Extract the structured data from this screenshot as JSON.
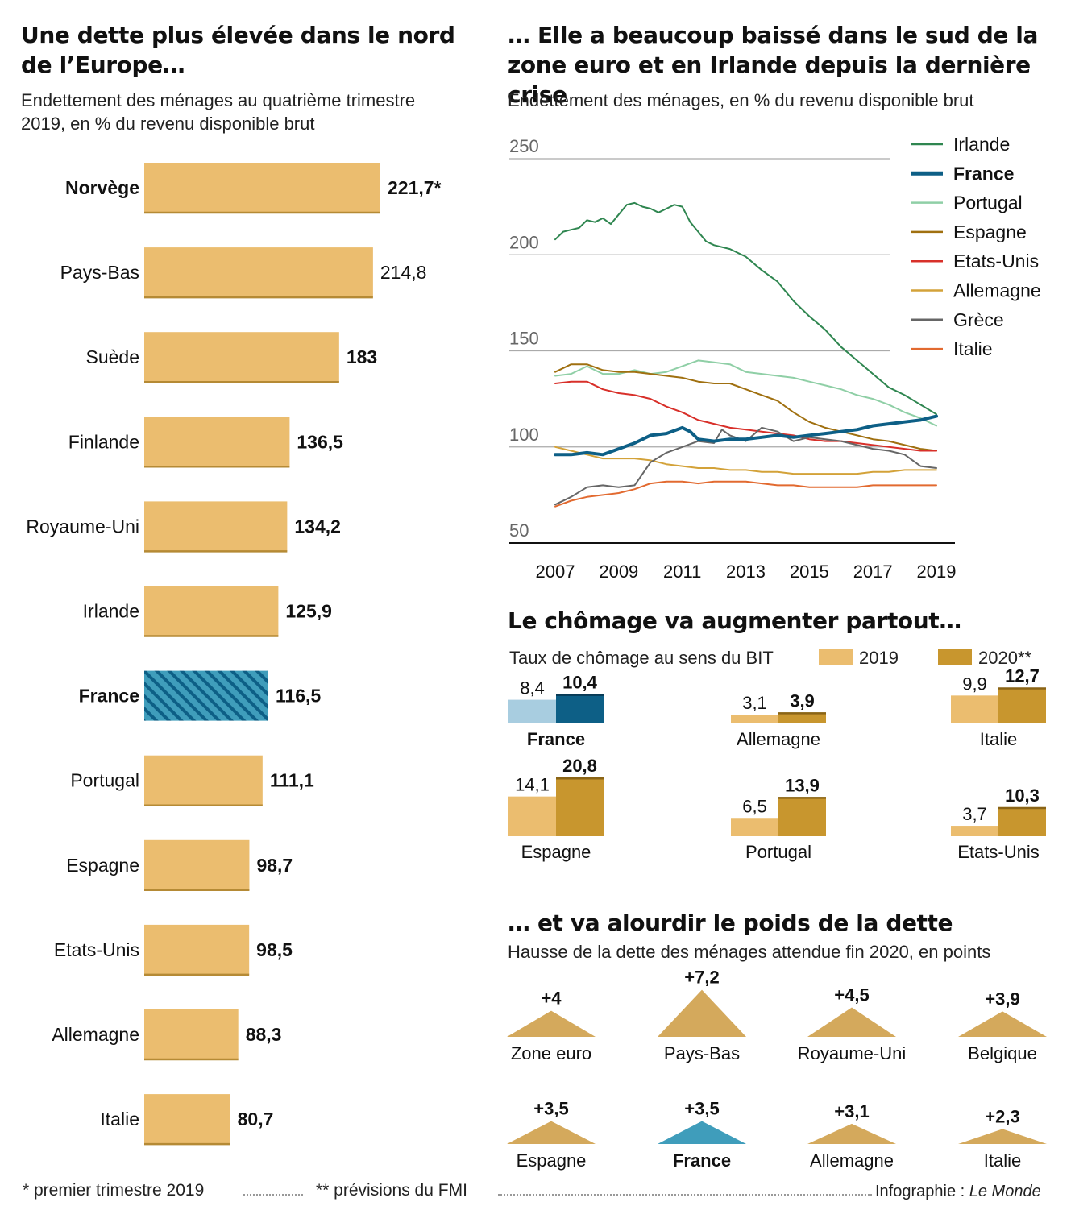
{
  "left": {
    "title": "Une dette plus élevée dans le nord de l’Europe…",
    "subtitle": "Endettement des ménages au quatrième trimestre 2019, en % du revenu disponible brut"
  },
  "line": {
    "title": "… Elle a beaucoup baissé dans le sud de la zone euro et en Irlande depuis la dernière crise",
    "subtitle": "Endettement des ménages, en % du revenu disponible brut"
  },
  "unemp": {
    "title": "Le chômage va augmenter partout…",
    "subtitle": "Taux de chômage au sens du BIT",
    "legend_2019": "2019",
    "legend_2020": "2020**"
  },
  "debt": {
    "title": "… et va alourdir le poids de la dette",
    "subtitle": "Hausse de la dette des ménages attendue fin 2020, en points"
  },
  "footer": {
    "note1": "* premier trimestre 2019",
    "note2": "** prévisions du FMI",
    "credit_prefix": "Infographie : ",
    "credit_source": "Le Monde"
  },
  "colors": {
    "bar": "#ebbd6f",
    "bar_dark": "#c8962e",
    "bar_edge": "#b58a35",
    "france_blue": "#0d5f86",
    "france_light": "#a8cde0",
    "triangle": "#d4a95c",
    "triangle_france": "#3f9dbb"
  },
  "chart_data": [
    {
      "type": "bar",
      "orientation": "horizontal",
      "categories": [
        "Norvège",
        "Pays-Bas",
        "Suède",
        "Finlande",
        "Royaume-Uni",
        "Irlande",
        "France",
        "Portugal",
        "Espagne",
        "Etats-Unis",
        "Allemagne",
        "Italie"
      ],
      "values": [
        221.7,
        214.8,
        183,
        136.5,
        134.2,
        125.9,
        116.5,
        111.1,
        98.7,
        98.5,
        88.3,
        80.7
      ],
      "value_labels": [
        "221,7*",
        "214,8",
        "183",
        "136,5",
        "134,2",
        "125,9",
        "116,5",
        "111,1",
        "98,7",
        "98,5",
        "88,3",
        "80,7"
      ],
      "bold_labels": [
        true,
        false,
        false,
        false,
        false,
        false,
        true,
        false,
        false,
        false,
        false,
        false
      ],
      "highlight": "France"
    },
    {
      "type": "line",
      "x_ticks": [
        "2007",
        "2009",
        "2011",
        "2013",
        "2015",
        "2017",
        "2019"
      ],
      "y_ticks": [
        "50",
        "100",
        "150",
        "200",
        "250"
      ],
      "ylim": [
        50,
        250
      ],
      "xlim": [
        2007,
        2019
      ],
      "grid": true,
      "legend_position": "right",
      "series": [
        {
          "name": "Irlande",
          "color": "#2f8650",
          "width": 2,
          "bold": false,
          "x": [
            2007,
            2007.25,
            2007.5,
            2007.75,
            2008,
            2008.25,
            2008.5,
            2008.75,
            2009,
            2009.25,
            2009.5,
            2009.75,
            2010,
            2010.25,
            2010.5,
            2010.75,
            2011,
            2011.25,
            2011.5,
            2011.75,
            2012,
            2012.5,
            2013,
            2013.5,
            2014,
            2014.5,
            2015,
            2015.5,
            2016,
            2016.5,
            2017,
            2017.5,
            2018,
            2018.5,
            2019
          ],
          "y": [
            208,
            212,
            213,
            214,
            218,
            217,
            219,
            216,
            221,
            226,
            227,
            225,
            224,
            222,
            224,
            226,
            225,
            217,
            212,
            207,
            205,
            203,
            199,
            192,
            186,
            176,
            168,
            161,
            152,
            145,
            138,
            131,
            127,
            122,
            117
          ]
        },
        {
          "name": "France",
          "color": "#0d5f86",
          "width": 4,
          "bold": true,
          "x": [
            2007,
            2007.5,
            2008,
            2008.5,
            2009,
            2009.5,
            2010,
            2010.5,
            2011,
            2011.25,
            2011.5,
            2012,
            2012.5,
            2013,
            2013.5,
            2014,
            2014.5,
            2015,
            2015.5,
            2016,
            2016.5,
            2017,
            2017.5,
            2018,
            2018.5,
            2019
          ],
          "y": [
            96,
            96,
            97,
            96,
            99,
            102,
            106,
            107,
            110,
            108,
            104,
            103,
            104,
            104,
            105,
            106,
            105,
            106,
            107,
            108,
            109,
            111,
            112,
            113,
            114,
            116
          ]
        },
        {
          "name": "Portugal",
          "color": "#8fcfa6",
          "width": 2,
          "bold": false,
          "x": [
            2007,
            2007.5,
            2008,
            2008.5,
            2009,
            2009.5,
            2010,
            2010.5,
            2011,
            2011.5,
            2012,
            2012.5,
            2013,
            2013.5,
            2014,
            2014.5,
            2015,
            2015.5,
            2016,
            2016.5,
            2017,
            2017.5,
            2018,
            2018.5,
            2019
          ],
          "y": [
            137,
            138,
            142,
            138,
            138,
            140,
            138,
            139,
            142,
            145,
            144,
            143,
            139,
            138,
            137,
            136,
            134,
            132,
            130,
            127,
            125,
            122,
            118,
            115,
            111
          ]
        },
        {
          "name": "Espagne",
          "color": "#a07010",
          "width": 2,
          "bold": false,
          "x": [
            2007,
            2007.5,
            2008,
            2008.5,
            2009,
            2009.5,
            2010,
            2010.5,
            2011,
            2011.5,
            2012,
            2012.5,
            2013,
            2013.5,
            2014,
            2014.5,
            2015,
            2015.5,
            2016,
            2016.5,
            2017,
            2017.5,
            2018,
            2018.5,
            2019
          ],
          "y": [
            139,
            143,
            143,
            140,
            139,
            139,
            138,
            137,
            136,
            134,
            133,
            133,
            130,
            127,
            124,
            118,
            113,
            110,
            108,
            106,
            104,
            103,
            101,
            99,
            98
          ]
        },
        {
          "name": "Etats-Unis",
          "color": "#d8302a",
          "width": 2,
          "bold": false,
          "x": [
            2007,
            2007.5,
            2008,
            2008.5,
            2009,
            2009.5,
            2010,
            2010.5,
            2011,
            2011.5,
            2012,
            2012.5,
            2013,
            2013.5,
            2014,
            2014.5,
            2015,
            2015.5,
            2016,
            2016.5,
            2017,
            2017.5,
            2018,
            2018.5,
            2019
          ],
          "y": [
            133,
            134,
            134,
            130,
            128,
            127,
            125,
            121,
            118,
            114,
            112,
            110,
            109,
            108,
            107,
            106,
            104,
            103,
            103,
            102,
            101,
            100,
            99,
            98,
            98
          ]
        },
        {
          "name": "Allemagne",
          "color": "#d3a239",
          "width": 2,
          "bold": false,
          "x": [
            2007,
            2007.5,
            2008,
            2008.5,
            2009,
            2009.5,
            2010,
            2010.5,
            2011,
            2011.5,
            2012,
            2012.5,
            2013,
            2013.5,
            2014,
            2014.5,
            2015,
            2015.5,
            2016,
            2016.5,
            2017,
            2017.5,
            2018,
            2018.5,
            2019
          ],
          "y": [
            100,
            98,
            96,
            94,
            94,
            94,
            93,
            91,
            90,
            89,
            89,
            88,
            88,
            87,
            87,
            86,
            86,
            86,
            86,
            86,
            87,
            87,
            88,
            88,
            88
          ]
        },
        {
          "name": "Grèce",
          "color": "#666666",
          "width": 2,
          "bold": false,
          "x": [
            2007,
            2007.5,
            2008,
            2008.5,
            2009,
            2009.5,
            2010,
            2010.5,
            2011,
            2011.5,
            2012,
            2012.25,
            2012.5,
            2013,
            2013.5,
            2014,
            2014.5,
            2015,
            2015.5,
            2016,
            2016.5,
            2017,
            2017.5,
            2018,
            2018.5,
            2019
          ],
          "y": [
            70,
            74,
            79,
            80,
            79,
            80,
            92,
            97,
            100,
            103,
            102,
            109,
            106,
            103,
            110,
            108,
            103,
            105,
            104,
            103,
            101,
            99,
            98,
            96,
            90,
            89
          ]
        },
        {
          "name": "Italie",
          "color": "#e26a30",
          "width": 2,
          "bold": false,
          "x": [
            2007,
            2007.5,
            2008,
            2008.5,
            2009,
            2009.5,
            2010,
            2010.5,
            2011,
            2011.5,
            2012,
            2012.5,
            2013,
            2013.5,
            2014,
            2014.5,
            2015,
            2015.5,
            2016,
            2016.5,
            2017,
            2017.5,
            2018,
            2018.5,
            2019
          ],
          "y": [
            69,
            72,
            74,
            75,
            76,
            78,
            81,
            82,
            82,
            81,
            82,
            82,
            82,
            81,
            80,
            80,
            79,
            79,
            79,
            79,
            80,
            80,
            80,
            80,
            80
          ]
        }
      ]
    },
    {
      "type": "bar",
      "categories": [
        "France",
        "Allemagne",
        "Italie",
        "Espagne",
        "Portugal",
        "Etats-Unis"
      ],
      "series": [
        {
          "name": "2019",
          "values": [
            8.4,
            3.1,
            9.9,
            14.1,
            6.5,
            3.7
          ],
          "labels": [
            "8,4",
            "3,1",
            "9,9",
            "14,1",
            "6,5",
            "3,7"
          ]
        },
        {
          "name": "2020**",
          "values": [
            10.4,
            3.9,
            12.7,
            20.8,
            13.9,
            10.3
          ],
          "labels": [
            "10,4",
            "3,9",
            "12,7",
            "20,8",
            "13,9",
            "10,3"
          ]
        }
      ],
      "highlight": "France"
    },
    {
      "type": "bar",
      "shape": "triangle",
      "categories": [
        "Zone euro",
        "Pays-Bas",
        "Royaume-Uni",
        "Belgique",
        "Espagne",
        "France",
        "Allemagne",
        "Italie"
      ],
      "values": [
        4,
        7.2,
        4.5,
        3.9,
        3.5,
        3.5,
        3.1,
        2.3
      ],
      "value_labels": [
        "+4",
        "+7,2",
        "+4,5",
        "+3,9",
        "+3,5",
        "+3,5",
        "+3,1",
        "+2,3"
      ],
      "highlight": "France"
    }
  ]
}
